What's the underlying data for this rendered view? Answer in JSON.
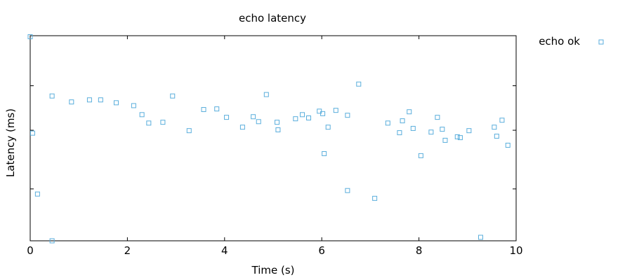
{
  "chart_data": {
    "type": "scatter",
    "title": "echo latency",
    "xlabel": "Time (s)",
    "ylabel": "Latency (ms)",
    "xlim": [
      0,
      10
    ],
    "ylim": [
      0,
      1
    ],
    "x_ticks": [
      0,
      2,
      4,
      6,
      8,
      10
    ],
    "x_tick_labels": [
      "0",
      "2",
      "4",
      "6",
      "8",
      "10"
    ],
    "y_ticks": [
      0.0,
      0.253,
      0.539,
      0.756,
      1.0
    ],
    "y_tick_labels": [
      "",
      "",
      "",
      "",
      ""
    ],
    "grid": false,
    "legend_position": "top-right-outside",
    "series": [
      {
        "name": "echo ok",
        "color": "#5aaedc",
        "marker": "square-open",
        "points": [
          [
            0.0,
            0.995
          ],
          [
            0.05,
            0.525
          ],
          [
            0.15,
            0.228
          ],
          [
            0.45,
            0.0
          ],
          [
            0.45,
            0.706
          ],
          [
            0.85,
            0.677
          ],
          [
            1.22,
            0.687
          ],
          [
            1.45,
            0.687
          ],
          [
            1.77,
            0.673
          ],
          [
            2.13,
            0.659
          ],
          [
            2.3,
            0.615
          ],
          [
            2.44,
            0.574
          ],
          [
            2.73,
            0.578
          ],
          [
            2.93,
            0.706
          ],
          [
            3.27,
            0.537
          ],
          [
            3.57,
            0.64
          ],
          [
            3.84,
            0.643
          ],
          [
            4.04,
            0.602
          ],
          [
            4.37,
            0.554
          ],
          [
            4.59,
            0.605
          ],
          [
            4.7,
            0.581
          ],
          [
            4.86,
            0.713
          ],
          [
            5.08,
            0.578
          ],
          [
            5.1,
            0.541
          ],
          [
            5.46,
            0.595
          ],
          [
            5.6,
            0.615
          ],
          [
            5.73,
            0.599
          ],
          [
            5.95,
            0.632
          ],
          [
            6.02,
            0.62
          ],
          [
            6.05,
            0.425
          ],
          [
            6.13,
            0.554
          ],
          [
            6.29,
            0.636
          ],
          [
            6.53,
            0.612
          ],
          [
            6.53,
            0.245
          ],
          [
            6.76,
            0.764
          ],
          [
            7.09,
            0.207
          ],
          [
            7.36,
            0.574
          ],
          [
            7.6,
            0.527
          ],
          [
            7.66,
            0.585
          ],
          [
            7.8,
            0.629
          ],
          [
            7.88,
            0.548
          ],
          [
            8.04,
            0.415
          ],
          [
            8.25,
            0.53
          ],
          [
            8.38,
            0.602
          ],
          [
            8.48,
            0.544
          ],
          [
            8.54,
            0.49
          ],
          [
            8.79,
            0.507
          ],
          [
            8.85,
            0.503
          ],
          [
            9.03,
            0.537
          ],
          [
            9.27,
            0.017
          ],
          [
            9.55,
            0.554
          ],
          [
            9.6,
            0.51
          ],
          [
            9.71,
            0.588
          ],
          [
            9.83,
            0.466
          ]
        ]
      }
    ]
  }
}
